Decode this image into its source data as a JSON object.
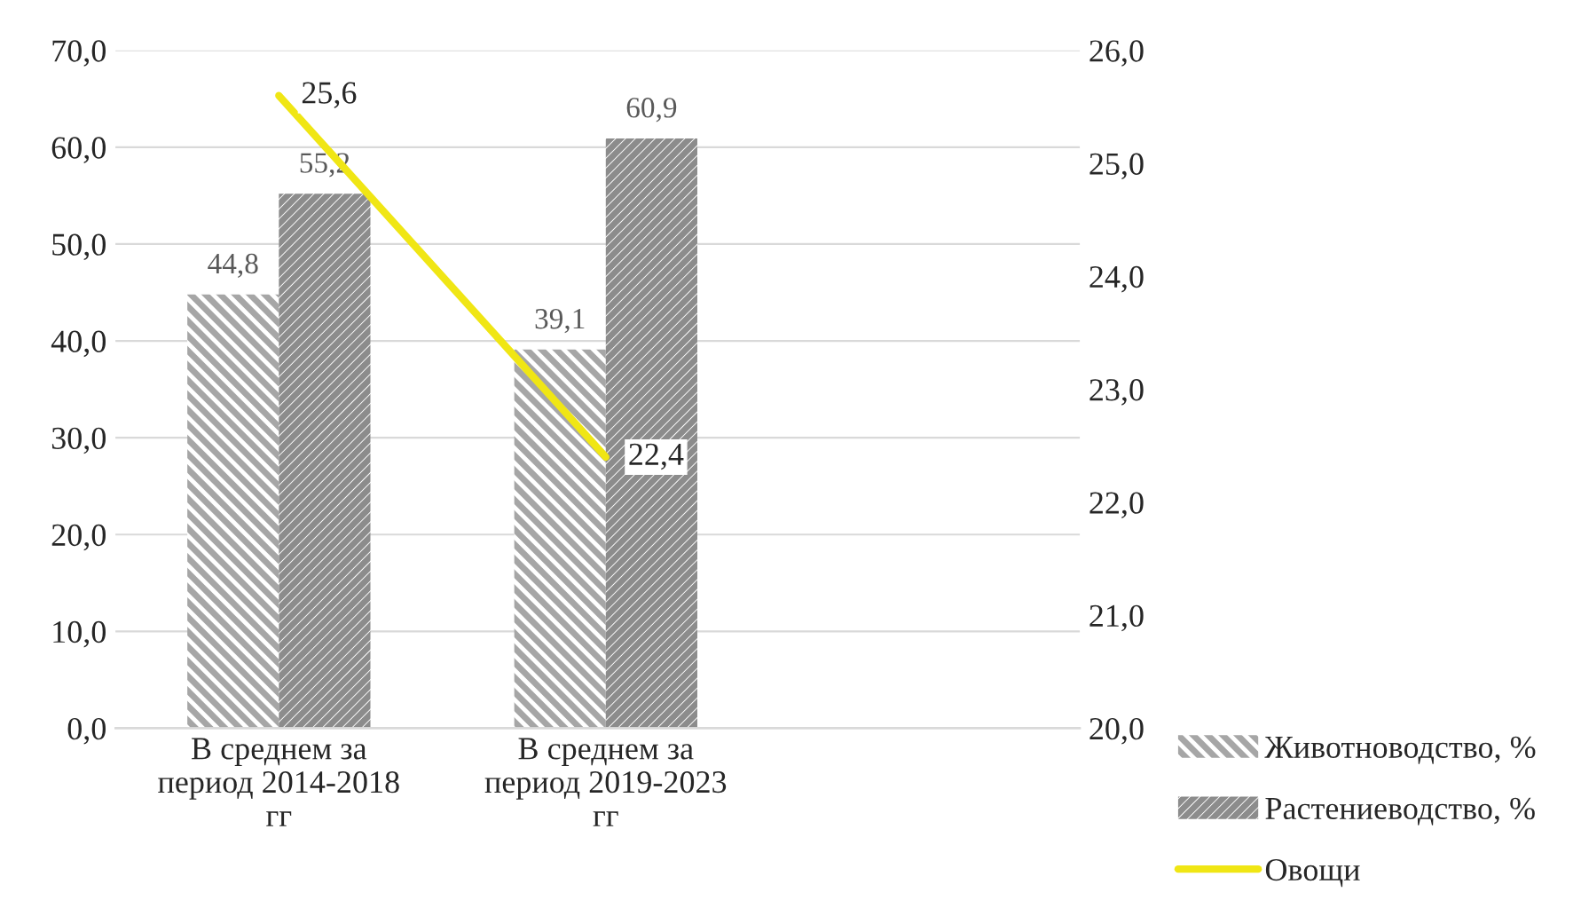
{
  "chart_data": {
    "type": "bar",
    "categories": [
      "В среднем за\nпериод 2014-2018\nгг",
      "В среднем за\nпериод 2019-2023\nгг"
    ],
    "series": [
      {
        "name": "Животноводство, %",
        "color": "#a6a6a6",
        "values": [
          44.8,
          39.1
        ],
        "value_labels": [
          "44,8",
          "39,1"
        ]
      },
      {
        "name": "Растениеводство, %",
        "color": "#8c8c8c",
        "values": [
          55.2,
          60.9
        ],
        "value_labels": [
          "55,2",
          "60,9"
        ]
      },
      {
        "name": "Овощи",
        "type": "line",
        "axis": "y2",
        "color": "#f0e614",
        "values": [
          25.6,
          22.4
        ],
        "value_labels": [
          "25,6",
          "22,4"
        ]
      }
    ],
    "ylim": [
      0,
      70
    ],
    "yticks": [
      {
        "value": 0,
        "label": "0,0"
      },
      {
        "value": 10,
        "label": "10,0"
      },
      {
        "value": 20,
        "label": "20,0"
      },
      {
        "value": 30,
        "label": "30,0"
      },
      {
        "value": 40,
        "label": "40,0"
      },
      {
        "value": 50,
        "label": "50,0"
      },
      {
        "value": 60,
        "label": "60,0"
      },
      {
        "value": 70,
        "label": "70,0"
      }
    ],
    "y2lim": [
      20,
      26
    ],
    "y2ticks": [
      {
        "value": 20,
        "label": "20,0"
      },
      {
        "value": 21,
        "label": "21,0"
      },
      {
        "value": 22,
        "label": "22,0"
      },
      {
        "value": 23,
        "label": "23,0"
      },
      {
        "value": 24,
        "label": "24,0"
      },
      {
        "value": 25,
        "label": "25,0"
      },
      {
        "value": 26,
        "label": "26,0"
      }
    ],
    "grid": "y",
    "legend": "bottom right",
    "marker": "none",
    "line_style": "solid"
  }
}
